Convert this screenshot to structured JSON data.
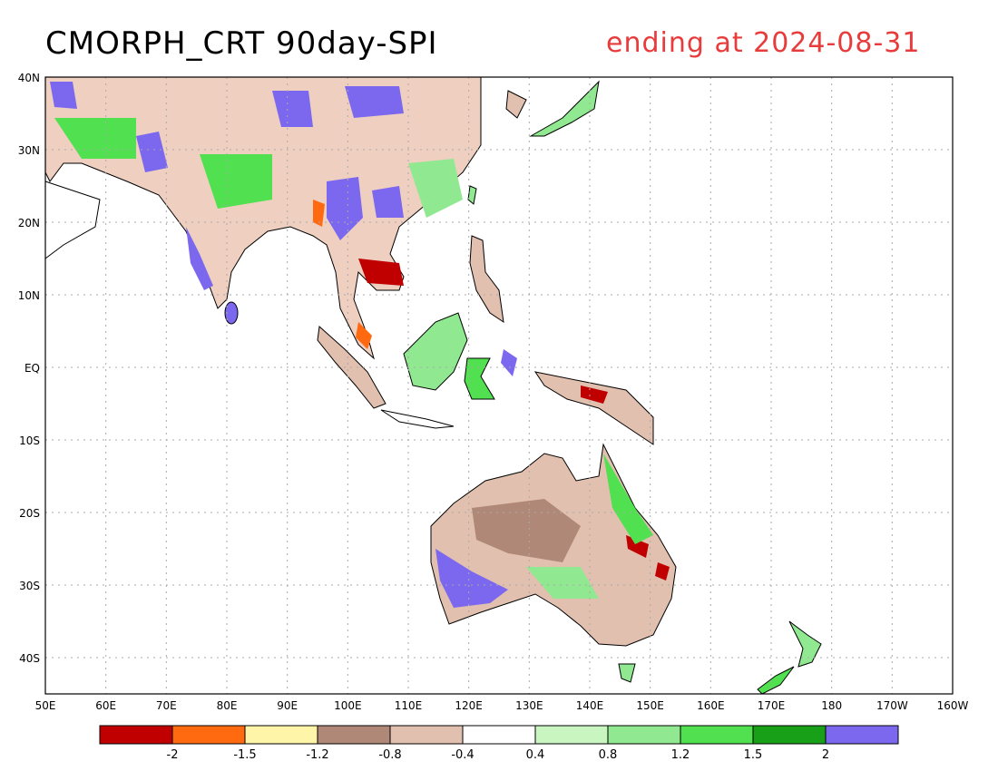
{
  "header": {
    "title": "CMORPH_CRT 90day-SPI",
    "subtitle": "ending at 2024-08-31",
    "subtitle_color": "#e83c3c"
  },
  "map": {
    "lat_labels": [
      "40N",
      "30N",
      "20N",
      "10N",
      "EQ",
      "10S",
      "20S",
      "30S",
      "40S"
    ],
    "lon_labels": [
      "50E",
      "60E",
      "70E",
      "80E",
      "90E",
      "100E",
      "110E",
      "120E",
      "130E",
      "140E",
      "150E",
      "160E",
      "170E",
      "180",
      "170W",
      "160W"
    ],
    "grid": "dotted"
  },
  "legend": {
    "colors": [
      "#c00000",
      "#ff6a10",
      "#fff5a8",
      "#b08878",
      "#e2c0b0",
      "#ffffff",
      "#c8f5c0",
      "#90e890",
      "#50e050",
      "#18a018",
      "#7b68ee"
    ],
    "labels": [
      "-2",
      "-1.5",
      "-1.2",
      "-0.8",
      "-0.4",
      "0.4",
      "0.8",
      "1.2",
      "1.5",
      "2"
    ]
  }
}
